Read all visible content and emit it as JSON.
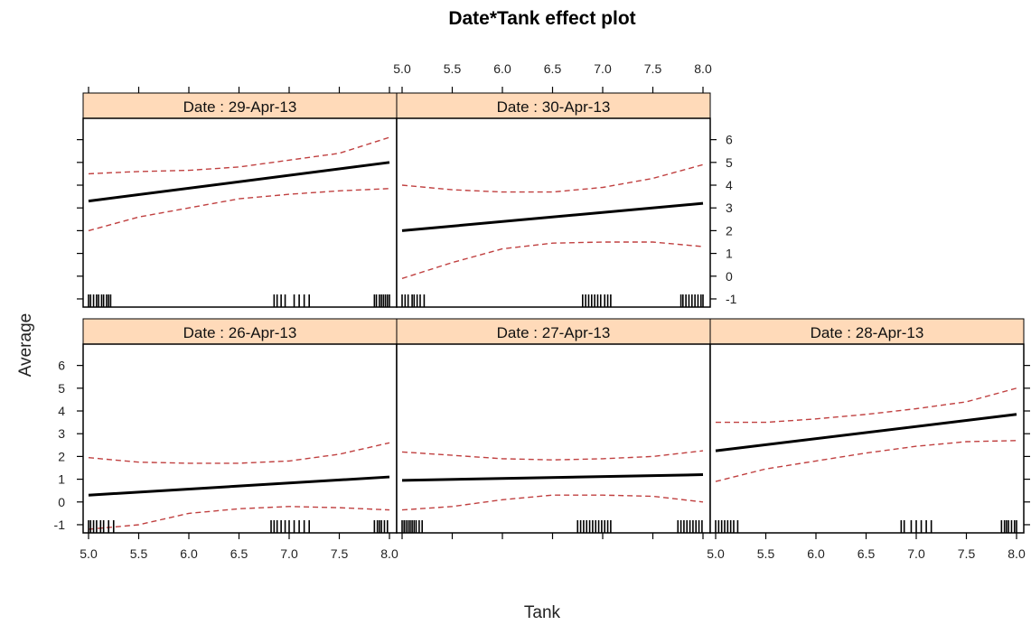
{
  "chart_data": {
    "type": "line",
    "title": "Date*Tank effect plot",
    "xlabel": "Tank",
    "ylabel": "Average",
    "xlim": [
      4.95,
      8.03
    ],
    "ylim": [
      -1.2,
      6.7
    ],
    "x_ticks": [
      5.0,
      5.5,
      6.0,
      6.5,
      7.0,
      7.5,
      8.0
    ],
    "x_tick_labels": [
      "5.0",
      "5.5",
      "6.0",
      "6.5",
      "7.0",
      "7.5",
      "8.0"
    ],
    "y_ticks": [
      -1,
      0,
      1,
      2,
      3,
      4,
      5,
      6
    ],
    "y_tick_labels": [
      "-1",
      "0",
      "1",
      "2",
      "3",
      "4",
      "5",
      "6"
    ],
    "strip_color": "#ffdab9",
    "fit_color": "#000000",
    "band_color": "#c04040",
    "panels": [
      {
        "strip": "Date : 29-Apr-13",
        "fit": {
          "x": [
            5.0,
            8.0
          ],
          "y": [
            3.3,
            5.0
          ]
        },
        "upper": {
          "x": [
            5.0,
            5.5,
            6.0,
            6.5,
            7.0,
            7.5,
            8.0
          ],
          "y": [
            4.5,
            4.6,
            4.65,
            4.8,
            5.1,
            5.4,
            6.1
          ]
        },
        "lower": {
          "x": [
            5.0,
            5.5,
            6.0,
            6.5,
            7.0,
            7.5,
            8.0
          ],
          "y": [
            2.0,
            2.6,
            3.0,
            3.4,
            3.6,
            3.75,
            3.85
          ]
        },
        "rug": [
          5.0,
          5.02,
          5.05,
          5.08,
          5.1,
          5.13,
          5.15,
          5.18,
          5.2,
          5.22,
          6.85,
          6.88,
          6.92,
          6.96,
          7.05,
          7.1,
          7.15,
          7.2,
          7.85,
          7.87,
          7.9,
          7.92,
          7.94,
          7.96,
          7.98,
          8.0
        ]
      },
      {
        "strip": "Date : 30-Apr-13",
        "fit": {
          "x": [
            5.0,
            8.0
          ],
          "y": [
            2.0,
            3.2
          ]
        },
        "upper": {
          "x": [
            5.0,
            5.5,
            6.0,
            6.5,
            7.0,
            7.5,
            8.0
          ],
          "y": [
            4.0,
            3.8,
            3.7,
            3.7,
            3.9,
            4.3,
            4.9
          ]
        },
        "lower": {
          "x": [
            5.0,
            5.5,
            6.0,
            6.5,
            7.0,
            7.5,
            8.0
          ],
          "y": [
            -0.1,
            0.6,
            1.2,
            1.45,
            1.5,
            1.5,
            1.3
          ]
        },
        "rug": [
          5.0,
          5.03,
          5.06,
          5.1,
          5.12,
          5.15,
          5.18,
          5.22,
          6.8,
          6.83,
          6.86,
          6.89,
          6.92,
          6.95,
          6.98,
          7.02,
          7.05,
          7.08,
          7.78,
          7.8,
          7.83,
          7.86,
          7.89,
          7.92,
          7.95,
          7.98,
          8.0
        ]
      },
      {
        "strip": "Date : 26-Apr-13",
        "fit": {
          "x": [
            5.0,
            8.0
          ],
          "y": [
            0.3,
            1.1
          ]
        },
        "upper": {
          "x": [
            5.0,
            5.5,
            6.0,
            6.5,
            7.0,
            7.5,
            8.0
          ],
          "y": [
            1.95,
            1.75,
            1.7,
            1.7,
            1.8,
            2.1,
            2.6
          ]
        },
        "lower": {
          "x": [
            5.0,
            5.5,
            6.0,
            6.5,
            7.0,
            7.5,
            8.0
          ],
          "y": [
            -1.2,
            -1.0,
            -0.5,
            -0.3,
            -0.2,
            -0.25,
            -0.35
          ]
        },
        "rug": [
          5.0,
          5.02,
          5.05,
          5.08,
          5.12,
          5.15,
          5.2,
          5.25,
          6.82,
          6.85,
          6.88,
          6.92,
          6.96,
          7.0,
          7.05,
          7.1,
          7.15,
          7.2,
          7.85,
          7.88,
          7.9,
          7.92,
          7.95,
          7.98
        ]
      },
      {
        "strip": "Date : 27-Apr-13",
        "fit": {
          "x": [
            5.0,
            8.0
          ],
          "y": [
            0.95,
            1.2
          ]
        },
        "upper": {
          "x": [
            5.0,
            5.5,
            6.0,
            6.5,
            7.0,
            7.5,
            8.0
          ],
          "y": [
            2.2,
            2.05,
            1.9,
            1.85,
            1.9,
            2.0,
            2.25
          ]
        },
        "lower": {
          "x": [
            5.0,
            5.5,
            6.0,
            6.5,
            7.0,
            7.5,
            8.0
          ],
          "y": [
            -0.35,
            -0.2,
            0.1,
            0.3,
            0.3,
            0.25,
            0.0
          ]
        },
        "rug": [
          5.0,
          5.02,
          5.04,
          5.06,
          5.08,
          5.1,
          5.12,
          5.14,
          5.17,
          5.2,
          6.75,
          6.78,
          6.81,
          6.84,
          6.87,
          6.9,
          6.93,
          6.96,
          6.99,
          7.02,
          7.05,
          7.08,
          7.75,
          7.78,
          7.81,
          7.84,
          7.87,
          7.9,
          7.93,
          7.96,
          7.99
        ]
      },
      {
        "strip": "Date : 28-Apr-13",
        "fit": {
          "x": [
            5.0,
            8.0
          ],
          "y": [
            2.25,
            3.85
          ]
        },
        "upper": {
          "x": [
            5.0,
            5.5,
            6.0,
            6.5,
            7.0,
            7.5,
            8.0
          ],
          "y": [
            3.5,
            3.5,
            3.65,
            3.85,
            4.1,
            4.4,
            5.0
          ]
        },
        "lower": {
          "x": [
            5.0,
            5.5,
            6.0,
            6.5,
            7.0,
            7.5,
            8.0
          ],
          "y": [
            0.9,
            1.45,
            1.8,
            2.15,
            2.45,
            2.65,
            2.7
          ]
        },
        "rug": [
          5.0,
          5.03,
          5.06,
          5.09,
          5.12,
          5.15,
          5.18,
          5.22,
          6.85,
          6.88,
          6.95,
          7.0,
          7.05,
          7.1,
          7.15,
          7.85,
          7.88,
          7.9,
          7.92,
          7.95,
          7.98,
          8.0
        ]
      }
    ]
  }
}
